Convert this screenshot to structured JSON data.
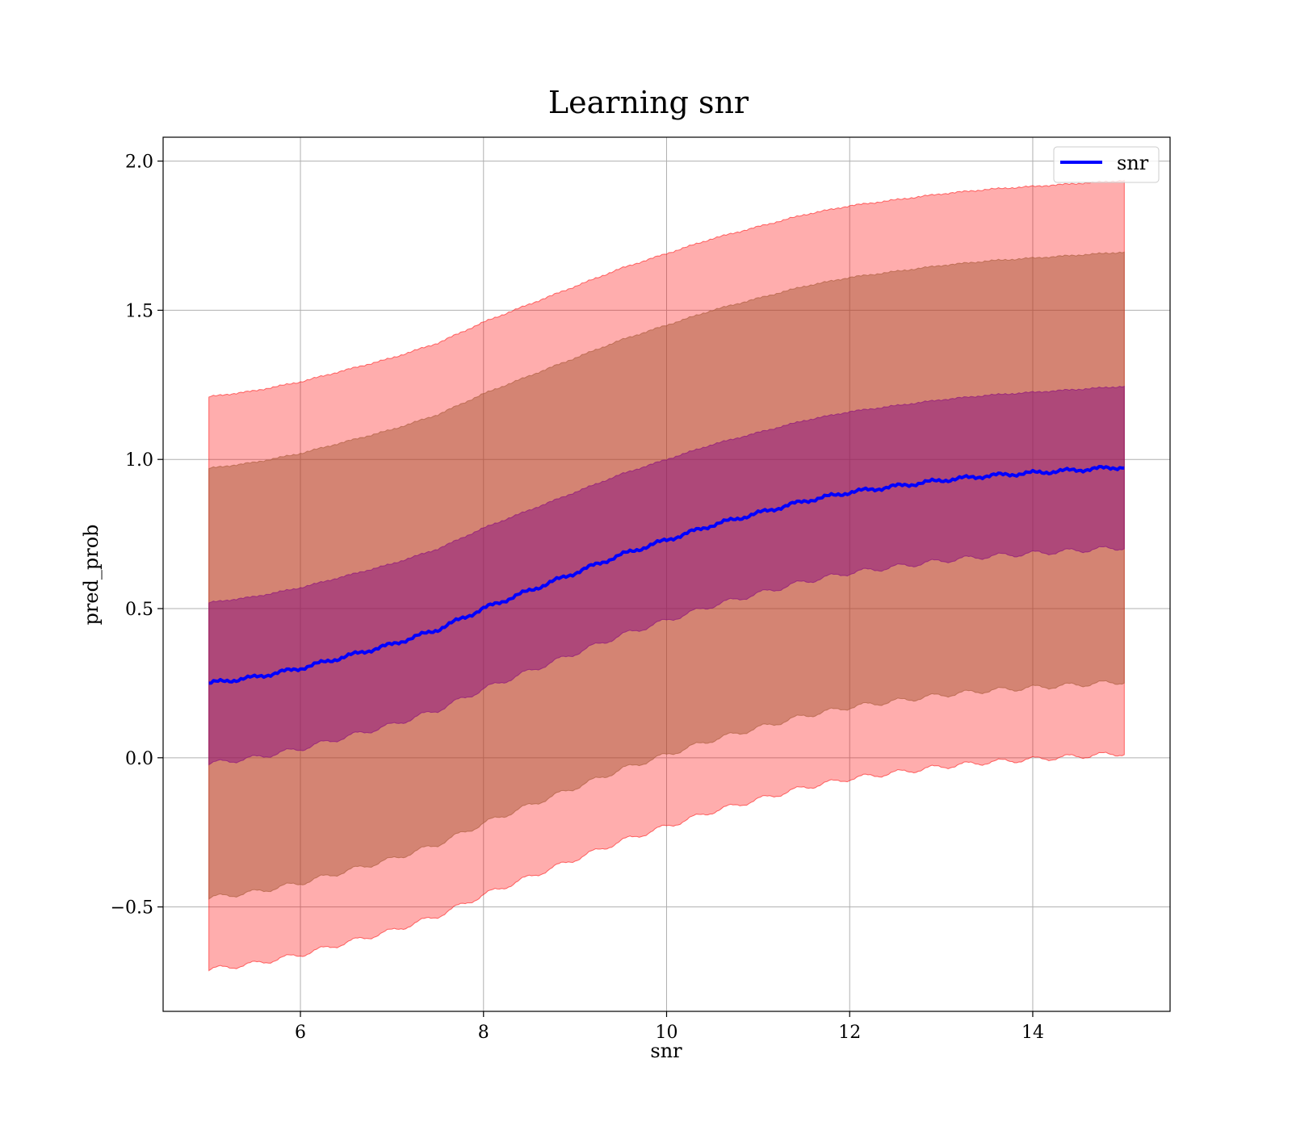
{
  "chart_data": {
    "type": "line",
    "title": "Learning snr",
    "xlabel": "snr",
    "ylabel": "pred_prob",
    "xlim": [
      4.5,
      15.5
    ],
    "ylim": [
      -0.85,
      2.08
    ],
    "xticks": [
      6,
      8,
      10,
      12,
      14
    ],
    "yticks": [
      -0.5,
      0.0,
      0.5,
      1.0,
      1.5,
      2.0
    ],
    "xtick_labels": [
      "6",
      "8",
      "10",
      "12",
      "14"
    ],
    "ytick_labels": [
      "−0.5",
      "0.0",
      "0.5",
      "1.0",
      "1.5",
      "2.0"
    ],
    "grid": true,
    "legend": {
      "placement": "top-right",
      "entries": [
        "snr"
      ]
    },
    "colors": {
      "line": "#0000ff",
      "band_outer": "#ff0000",
      "band_middle": "#a0522d",
      "band_inner": "#800080",
      "grid": "#b0b0b0"
    },
    "series": [
      {
        "name": "snr",
        "x": [
          5.0,
          5.5,
          6.0,
          6.5,
          7.0,
          7.5,
          8.0,
          8.5,
          9.0,
          9.5,
          10.0,
          10.5,
          11.0,
          11.5,
          12.0,
          12.5,
          13.0,
          13.5,
          14.0,
          14.5,
          15.0
        ],
        "y": [
          0.25,
          0.27,
          0.3,
          0.34,
          0.38,
          0.43,
          0.5,
          0.56,
          0.62,
          0.68,
          0.73,
          0.78,
          0.82,
          0.86,
          0.89,
          0.91,
          0.93,
          0.945,
          0.955,
          0.965,
          0.975
        ]
      }
    ],
    "bands": [
      {
        "level": "outer",
        "half_width": 0.96
      },
      {
        "level": "middle",
        "half_width": 0.72
      },
      {
        "level": "inner",
        "half_width": 0.27
      }
    ]
  }
}
